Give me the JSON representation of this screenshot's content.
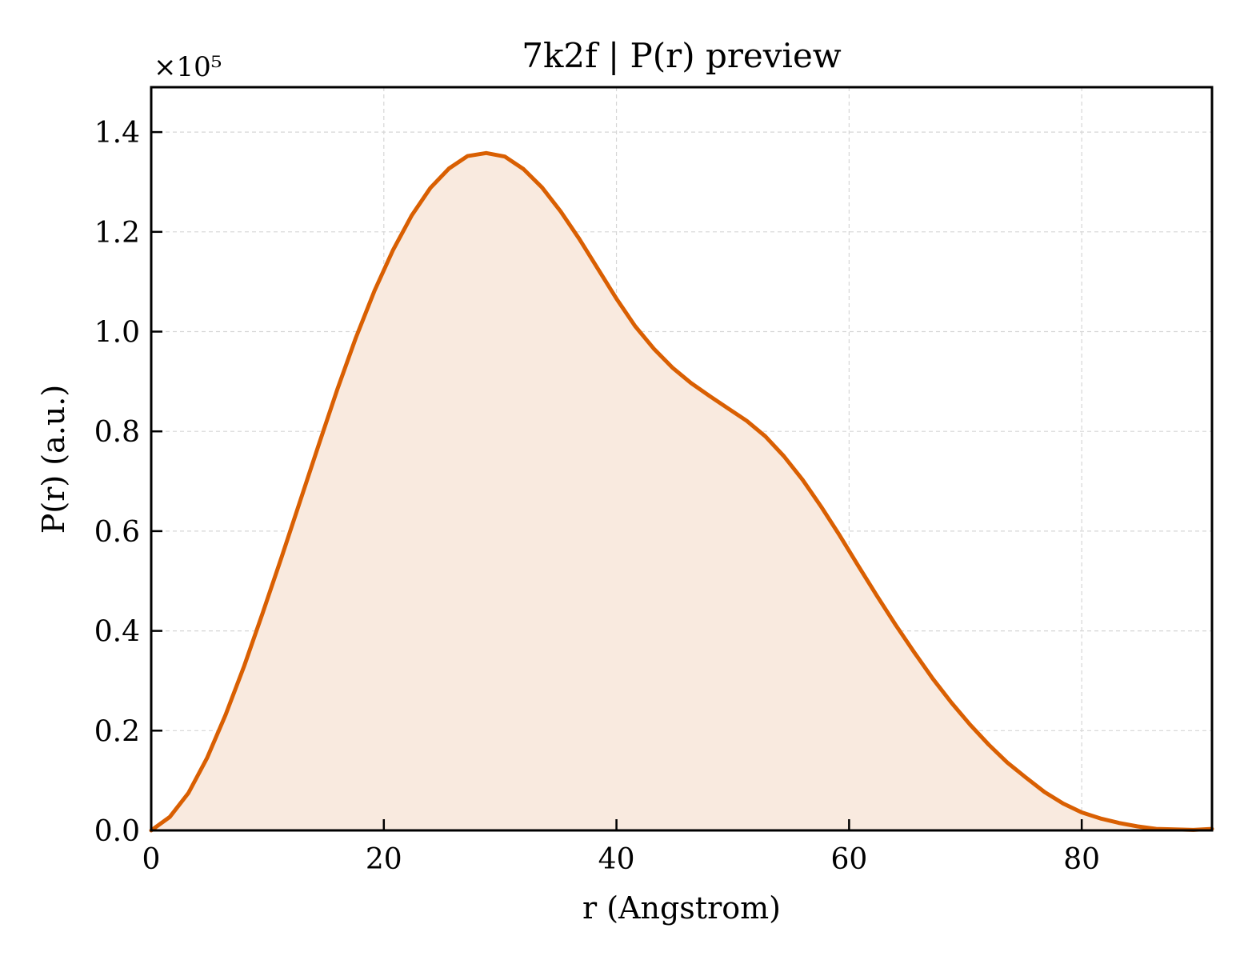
{
  "chart_data": {
    "type": "area",
    "title": "7k2f | P(r) preview",
    "xlabel": "r (Angstrom)",
    "ylabel": "P(r) (a.u.)",
    "y_offset_label": "×10⁵",
    "xlim": [
      0,
      91.2
    ],
    "ylim": [
      0,
      1.49
    ],
    "y_scale": 100000,
    "grid": true,
    "x_ticks": [
      0,
      20,
      40,
      60,
      80
    ],
    "x_tick_labels": [
      "0",
      "20",
      "40",
      "60",
      "80"
    ],
    "y_ticks": [
      0.0,
      0.2,
      0.4,
      0.6,
      0.8,
      1.0,
      1.2,
      1.4
    ],
    "y_tick_labels": [
      "0.0",
      "0.2",
      "0.4",
      "0.6",
      "0.8",
      "1.0",
      "1.2",
      "1.4"
    ],
    "colors": {
      "line": "#d95f02",
      "fill": "#f9eadf",
      "grid": "#d6d6d6"
    },
    "series": [
      {
        "x": [
          0,
          1.6,
          3.2,
          4.8,
          6.4,
          8.0,
          9.6,
          11.2,
          12.8,
          14.4,
          16.0,
          17.6,
          19.2,
          20.8,
          22.4,
          24.0,
          25.6,
          27.2,
          28.8,
          30.4,
          32.0,
          33.6,
          35.2,
          36.8,
          38.4,
          40.0,
          41.6,
          43.2,
          44.8,
          46.4,
          48.0,
          49.6,
          51.2,
          52.8,
          54.4,
          56.0,
          57.6,
          59.2,
          60.8,
          62.4,
          64.0,
          65.6,
          67.2,
          68.8,
          70.4,
          72.0,
          73.6,
          75.2,
          76.8,
          78.4,
          80.0,
          81.6,
          83.2,
          84.8,
          86.4,
          88.0,
          89.6,
          91.2
        ],
        "y": [
          0.0,
          0.027,
          0.075,
          0.145,
          0.232,
          0.33,
          0.437,
          0.547,
          0.66,
          0.773,
          0.884,
          0.988,
          1.082,
          1.164,
          1.233,
          1.288,
          1.327,
          1.352,
          1.358,
          1.351,
          1.326,
          1.289,
          1.241,
          1.186,
          1.126,
          1.066,
          1.011,
          0.966,
          0.928,
          0.897,
          0.871,
          0.846,
          0.821,
          0.79,
          0.75,
          0.703,
          0.649,
          0.591,
          0.53,
          0.47,
          0.412,
          0.357,
          0.304,
          0.256,
          0.212,
          0.172,
          0.136,
          0.106,
          0.077,
          0.054,
          0.036,
          0.024,
          0.015,
          0.008,
          0.003,
          0.002,
          0.001,
          0.003
        ]
      }
    ]
  }
}
